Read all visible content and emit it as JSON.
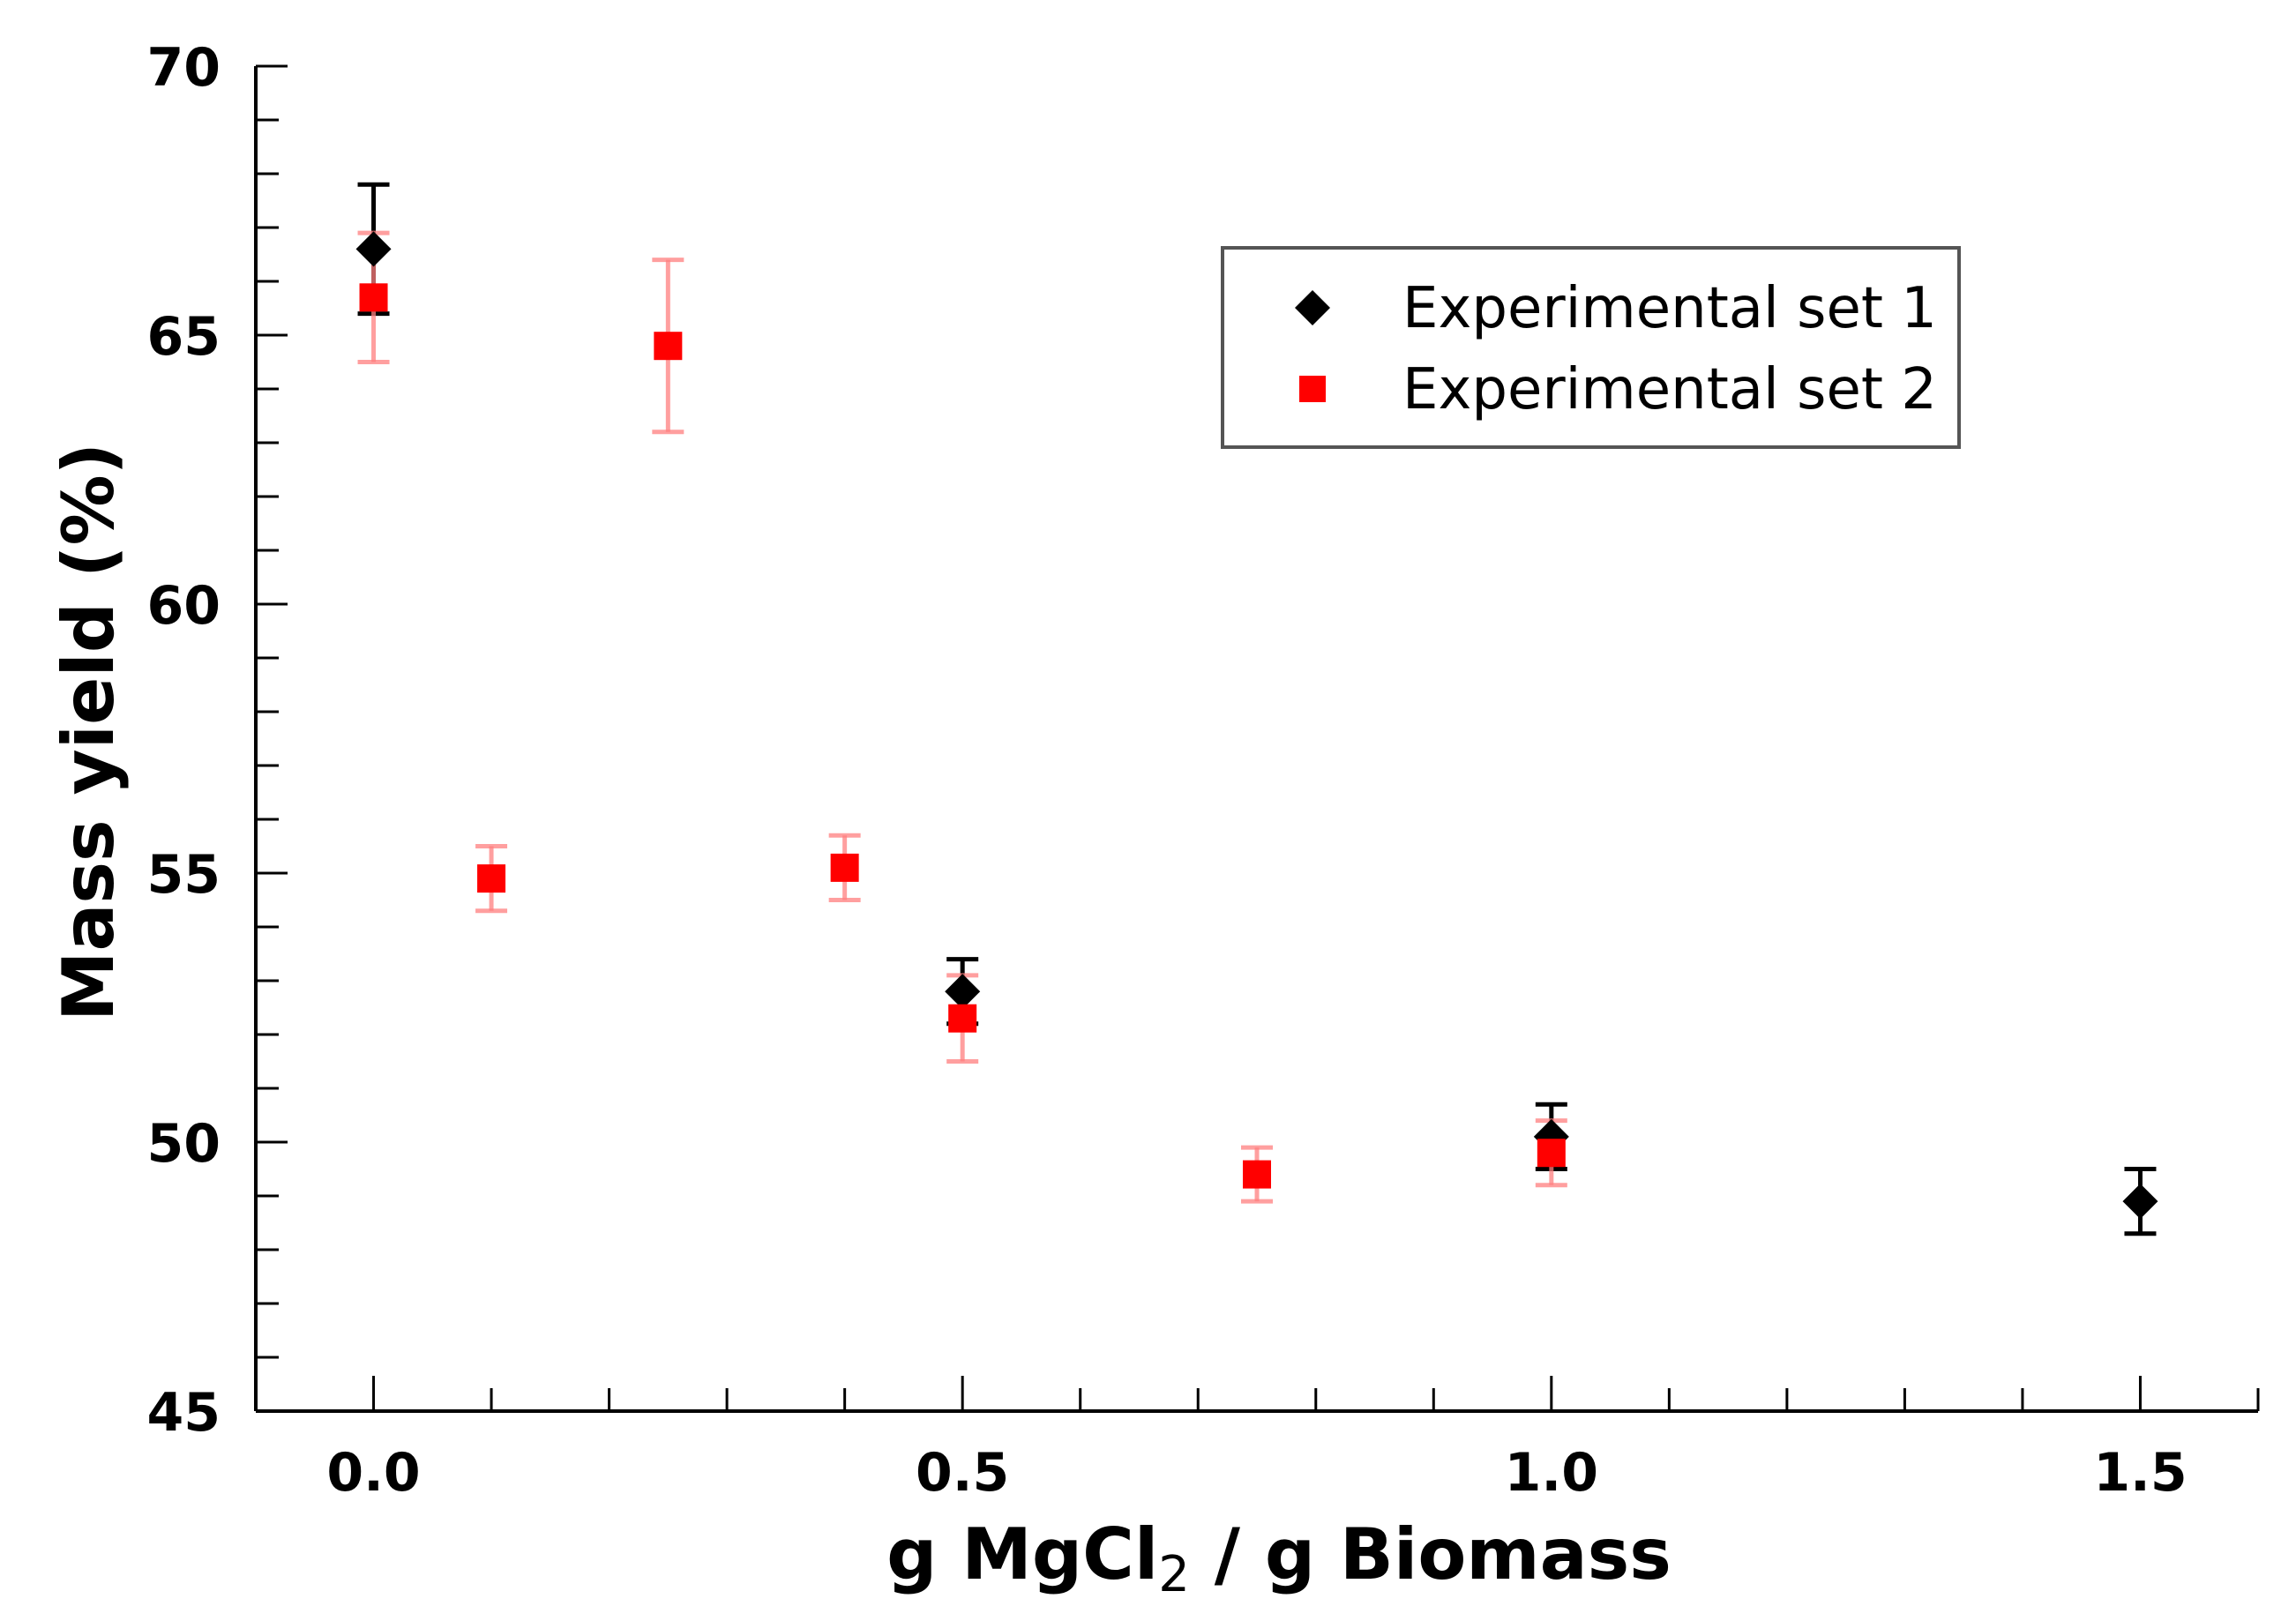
{
  "chart_data": {
    "type": "scatter",
    "title": "",
    "xlabel": {
      "prefix": "g MgCl",
      "subscript": "2",
      "suffix": " / g Biomass"
    },
    "ylabel": "Mass yield (%)",
    "xlim": [
      -0.1,
      1.6
    ],
    "ylim": [
      45,
      70
    ],
    "x_major_ticks": [
      0.0,
      0.5,
      1.0,
      1.5
    ],
    "x_tick_labels": [
      "0.0",
      "0.5",
      "1.0",
      "1.5"
    ],
    "x_minor_step": 0.1,
    "y_major_ticks": [
      45,
      50,
      55,
      60,
      65,
      70
    ],
    "y_tick_labels": [
      "45",
      "50",
      "55",
      "60",
      "65",
      "70"
    ],
    "y_minor_step": 1,
    "grid": false,
    "legend_position": "top-right",
    "series": [
      {
        "name": "Experimental set 1",
        "marker": "diamond",
        "color": "#000000",
        "errorbar_color": "#000000",
        "points": [
          {
            "x": 0.0,
            "y": 66.6,
            "err": 1.2
          },
          {
            "x": 0.5,
            "y": 52.8,
            "err": 0.6
          },
          {
            "x": 1.0,
            "y": 50.1,
            "err": 0.6
          },
          {
            "x": 1.5,
            "y": 48.9,
            "err": 0.6
          }
        ]
      },
      {
        "name": "Experimental set 2",
        "marker": "square",
        "color": "#ff0000",
        "errorbar_color": "#ff8080",
        "points": [
          {
            "x": 0.0,
            "y": 65.7,
            "err": 1.2
          },
          {
            "x": 0.1,
            "y": 54.9,
            "err": 0.6
          },
          {
            "x": 0.25,
            "y": 64.8,
            "err": 1.6
          },
          {
            "x": 0.4,
            "y": 55.1,
            "err": 0.6
          },
          {
            "x": 0.5,
            "y": 52.3,
            "err": 0.8
          },
          {
            "x": 0.75,
            "y": 49.4,
            "err": 0.5
          },
          {
            "x": 1.0,
            "y": 49.8,
            "err": 0.6
          }
        ]
      }
    ]
  }
}
